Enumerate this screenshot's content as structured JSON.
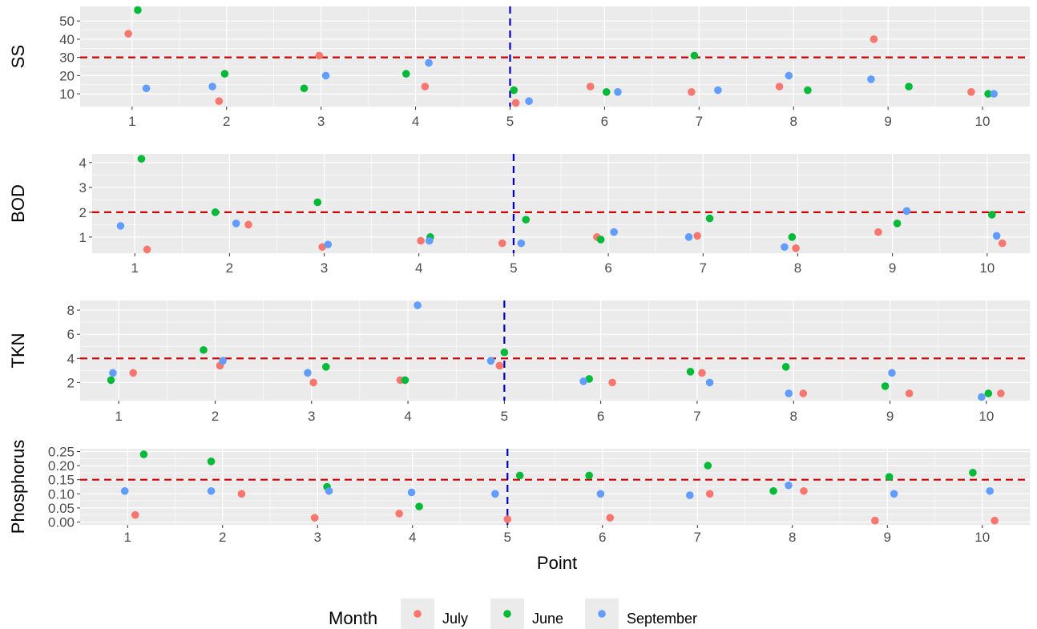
{
  "figure": {
    "xlabel": "Point",
    "legend": {
      "title": "Month",
      "position": "bottom",
      "entries": [
        {
          "name": "July",
          "color": "#f8766d"
        },
        {
          "name": "June",
          "color": "#00ba38"
        },
        {
          "name": "September",
          "color": "#619cff"
        }
      ]
    },
    "colors": {
      "panel_bg": "#ebebeb",
      "grid": "#ffffff",
      "threshold_line": "#cc0000",
      "reference_line": "#0000bb",
      "axis_text": "#4d4d4d"
    }
  },
  "chart_data": [
    {
      "type": "scatter",
      "ylabel": "SS",
      "categories": [
        "1",
        "2",
        "3",
        "4",
        "5",
        "6",
        "7",
        "8",
        "9",
        "10"
      ],
      "yticks": [
        10,
        20,
        30,
        40,
        50
      ],
      "ylim": [
        3,
        58
      ],
      "threshold": 30,
      "vline_x": 5,
      "grid": true,
      "series": [
        {
          "name": "July",
          "x": [
            0.96,
            1.92,
            2.98,
            4.1,
            5.06,
            5.85,
            6.92,
            7.85,
            8.85,
            9.88
          ],
          "y": [
            43,
            6,
            31,
            14,
            5,
            14,
            11,
            14,
            40,
            11
          ]
        },
        {
          "name": "June",
          "x": [
            1.06,
            1.98,
            2.82,
            3.9,
            5.04,
            6.02,
            6.95,
            8.15,
            9.22,
            10.06
          ],
          "y": [
            56,
            21,
            13,
            21,
            12,
            11,
            31,
            12,
            14,
            10
          ]
        },
        {
          "name": "September",
          "x": [
            1.15,
            1.85,
            3.05,
            4.14,
            5.2,
            6.14,
            7.2,
            7.95,
            8.82,
            10.12
          ],
          "y": [
            13,
            14,
            20,
            27,
            6,
            11,
            12,
            20,
            18,
            10
          ]
        }
      ]
    },
    {
      "type": "scatter",
      "ylabel": "BOD",
      "categories": [
        "1",
        "2",
        "3",
        "4",
        "5",
        "6",
        "7",
        "8",
        "9",
        "10"
      ],
      "yticks": [
        1,
        2,
        3,
        4
      ],
      "ylim": [
        0.35,
        4.35
      ],
      "threshold": 2,
      "vline_x": 5,
      "grid": true,
      "series": [
        {
          "name": "July",
          "x": [
            1.13,
            2.2,
            2.98,
            4.02,
            4.88,
            5.88,
            6.94,
            7.98,
            8.85,
            10.16
          ],
          "y": [
            0.5,
            1.5,
            0.6,
            0.85,
            0.75,
            1.0,
            1.05,
            0.55,
            1.2,
            0.75
          ]
        },
        {
          "name": "June",
          "x": [
            1.07,
            1.85,
            2.93,
            4.12,
            5.13,
            5.92,
            7.07,
            7.94,
            9.05,
            10.05
          ],
          "y": [
            4.15,
            2.0,
            2.4,
            1.0,
            1.7,
            0.9,
            1.75,
            1.0,
            1.55,
            1.9
          ]
        },
        {
          "name": "September",
          "x": [
            0.85,
            2.07,
            3.04,
            4.11,
            5.08,
            6.06,
            6.85,
            7.86,
            9.15,
            10.1
          ],
          "y": [
            1.45,
            1.55,
            0.7,
            0.85,
            0.75,
            1.2,
            1.0,
            0.6,
            2.05,
            1.05
          ]
        }
      ]
    },
    {
      "type": "scatter",
      "ylabel": "TKN",
      "categories": [
        "1",
        "2",
        "3",
        "4",
        "5",
        "6",
        "7",
        "8",
        "9",
        "10"
      ],
      "yticks": [
        2,
        4,
        6,
        8
      ],
      "ylim": [
        0.5,
        8.8
      ],
      "threshold": 4,
      "vline_x": 5,
      "grid": true,
      "series": [
        {
          "name": "July",
          "x": [
            1.15,
            2.05,
            3.02,
            3.92,
            4.95,
            6.12,
            7.05,
            8.1,
            9.2,
            10.15
          ],
          "y": [
            2.8,
            3.4,
            2.0,
            2.2,
            3.4,
            2.0,
            2.8,
            1.1,
            1.1,
            1.1
          ]
        },
        {
          "name": "June",
          "x": [
            0.92,
            1.88,
            3.15,
            3.97,
            5.0,
            5.88,
            6.93,
            7.92,
            8.95,
            10.02
          ],
          "y": [
            2.2,
            4.7,
            3.3,
            2.2,
            4.5,
            2.3,
            2.9,
            3.3,
            1.7,
            1.1
          ]
        },
        {
          "name": "September",
          "x": [
            0.94,
            2.08,
            2.96,
            4.1,
            4.86,
            5.82,
            7.13,
            7.95,
            9.02,
            9.95
          ],
          "y": [
            2.8,
            3.8,
            2.8,
            8.4,
            3.8,
            2.1,
            2.0,
            1.1,
            2.8,
            0.8
          ]
        }
      ]
    },
    {
      "type": "scatter",
      "ylabel": "Phosphorus",
      "categories": [
        "1",
        "2",
        "3",
        "4",
        "5",
        "6",
        "7",
        "8",
        "9",
        "10"
      ],
      "yticks": [
        0.0,
        0.05,
        0.1,
        0.15,
        0.2,
        0.25
      ],
      "ytick_labels": [
        "0.00",
        "0.05",
        "0.10",
        "0.15",
        "0.20",
        "0.25"
      ],
      "ylim": [
        -0.01,
        0.26
      ],
      "threshold": 0.15,
      "vline_x": 5,
      "grid": true,
      "series": [
        {
          "name": "July",
          "x": [
            1.08,
            2.2,
            2.97,
            3.86,
            5.0,
            6.08,
            7.13,
            8.12,
            8.87,
            10.13
          ],
          "y": [
            0.025,
            0.1,
            0.015,
            0.03,
            0.01,
            0.015,
            0.1,
            0.11,
            0.005,
            0.005
          ]
        },
        {
          "name": "June",
          "x": [
            1.17,
            1.88,
            3.1,
            4.07,
            5.13,
            5.86,
            7.11,
            7.8,
            9.02,
            9.9
          ],
          "y": [
            0.24,
            0.215,
            0.125,
            0.055,
            0.165,
            0.165,
            0.2,
            0.11,
            0.16,
            0.175
          ]
        },
        {
          "name": "September",
          "x": [
            0.97,
            1.88,
            3.12,
            3.99,
            4.87,
            5.98,
            6.92,
            7.96,
            9.07,
            10.08
          ],
          "y": [
            0.11,
            0.11,
            0.11,
            0.105,
            0.1,
            0.1,
            0.095,
            0.13,
            0.1,
            0.11
          ]
        }
      ]
    }
  ]
}
